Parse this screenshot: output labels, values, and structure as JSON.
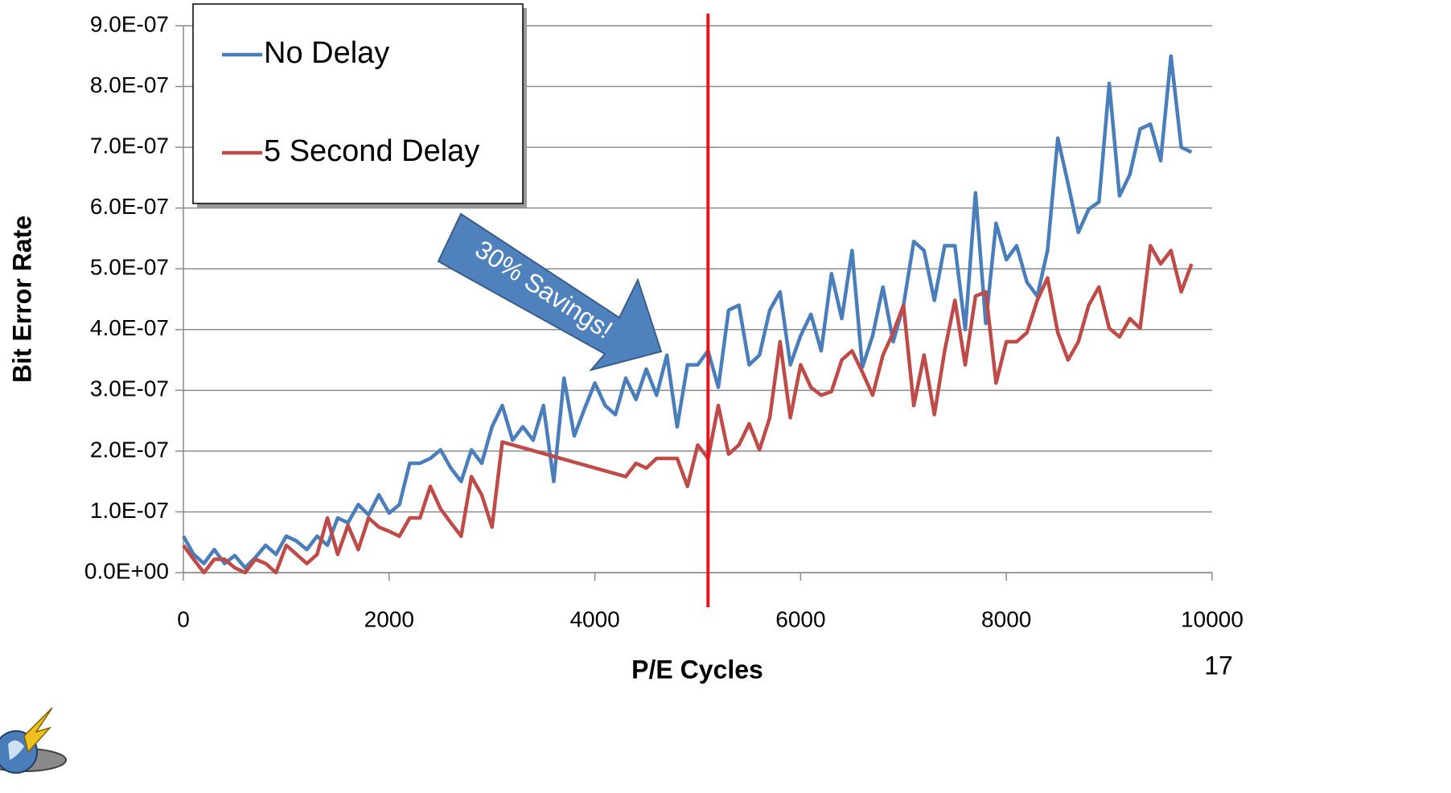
{
  "chart_data": {
    "type": "line",
    "x_label": "P/E Cycles",
    "y_label": "Bit Error Rate",
    "annotation": "30% Savings!",
    "page_number": "17",
    "reference_line": {
      "x": 5100,
      "color": "#e8141c"
    },
    "xlim": [
      0,
      10000
    ],
    "xticks": [
      0,
      2000,
      4000,
      6000,
      8000,
      10000
    ],
    "ylim": [
      0,
      9e-07
    ],
    "yticks": [
      {
        "value": 0,
        "label": "0.0E+00"
      },
      {
        "value": 1e-07,
        "label": "1.0E-07"
      },
      {
        "value": 2e-07,
        "label": "2.0E-07"
      },
      {
        "value": 3e-07,
        "label": "3.0E-07"
      },
      {
        "value": 4e-07,
        "label": "4.0E-07"
      },
      {
        "value": 5e-07,
        "label": "5.0E-07"
      },
      {
        "value": 6e-07,
        "label": "6.0E-07"
      },
      {
        "value": 7e-07,
        "label": "7.0E-07"
      },
      {
        "value": 8e-07,
        "label": "8.0E-07"
      },
      {
        "value": 9e-07,
        "label": "9.0E-07"
      }
    ],
    "grid": true,
    "legend": "top-left",
    "series": [
      {
        "name": "No Delay",
        "color": "#4a7ebb",
        "x": [
          0,
          100,
          200,
          300,
          400,
          500,
          600,
          700,
          800,
          900,
          1000,
          1100,
          1200,
          1300,
          1400,
          1500,
          1600,
          1700,
          1800,
          1900,
          2000,
          2100,
          2200,
          2300,
          2400,
          2500,
          2600,
          2700,
          2800,
          2900,
          3000,
          3100,
          3200,
          3300,
          3400,
          3500,
          3600,
          3700,
          3800,
          3900,
          4000,
          4100,
          4200,
          4300,
          4400,
          4500,
          4600,
          4700,
          4800,
          4900,
          5000,
          5100,
          5200,
          5300,
          5400,
          5500,
          5600,
          5700,
          5800,
          5900,
          6000,
          6100,
          6200,
          6300,
          6400,
          6500,
          6600,
          6700,
          6800,
          6900,
          7000,
          7100,
          7200,
          7300,
          7400,
          7500,
          7600,
          7700,
          7800,
          7900,
          8000,
          8100,
          8200,
          8300,
          8400,
          8500,
          8600,
          8700,
          8800,
          8900,
          9000,
          9100,
          9200,
          9300,
          9400,
          9500,
          9600,
          9700,
          9800
        ],
        "values": [
          6e-08,
          3e-08,
          1.5e-08,
          3.8e-08,
          1.5e-08,
          2.8e-08,
          8e-09,
          2.5e-08,
          4.5e-08,
          3e-08,
          6e-08,
          5.2e-08,
          3.8e-08,
          6e-08,
          4.5e-08,
          9e-08,
          8.2e-08,
          1.12e-07,
          9.5e-08,
          1.28e-07,
          9.8e-08,
          1.12e-07,
          1.8e-07,
          1.8e-07,
          1.88e-07,
          2.02e-07,
          1.72e-07,
          1.5e-07,
          2.02e-07,
          1.8e-07,
          2.4e-07,
          2.75e-07,
          2.18e-07,
          2.4e-07,
          2.18e-07,
          2.75e-07,
          1.5e-07,
          3.2e-07,
          2.25e-07,
          2.7e-07,
          3.12e-07,
          2.75e-07,
          2.6e-07,
          3.2e-07,
          2.85e-07,
          3.35e-07,
          2.92e-07,
          3.58e-07,
          2.4e-07,
          3.42e-07,
          3.42e-07,
          3.65e-07,
          3.05e-07,
          4.32e-07,
          4.4e-07,
          3.42e-07,
          3.58e-07,
          4.32e-07,
          4.62e-07,
          3.42e-07,
          3.9e-07,
          4.25e-07,
          3.65e-07,
          4.92e-07,
          4.18e-07,
          5.3e-07,
          3.38e-07,
          3.9e-07,
          4.7e-07,
          3.8e-07,
          4.4e-07,
          5.45e-07,
          5.3e-07,
          4.48e-07,
          5.38e-07,
          5.38e-07,
          4e-07,
          6.25e-07,
          4.1e-07,
          5.75e-07,
          5.15e-07,
          5.38e-07,
          4.78e-07,
          4.55e-07,
          5.3e-07,
          7.15e-07,
          6.4e-07,
          5.6e-07,
          5.98e-07,
          6.1e-07,
          8.05e-07,
          6.2e-07,
          6.55e-07,
          7.3e-07,
          7.38e-07,
          6.78e-07,
          8.5e-07,
          7e-07,
          6.92e-07
        ]
      },
      {
        "name": "5 Second Delay",
        "color": "#be4b48",
        "x": [
          0,
          100,
          200,
          300,
          400,
          500,
          600,
          700,
          800,
          900,
          1000,
          1100,
          1200,
          1300,
          1400,
          1500,
          1600,
          1700,
          1800,
          1900,
          2000,
          2100,
          2200,
          2300,
          2400,
          2500,
          2600,
          2700,
          2800,
          2900,
          3000,
          3100,
          4300,
          4400,
          4500,
          4600,
          4700,
          4800,
          4900,
          5000,
          5100,
          5200,
          5300,
          5400,
          5500,
          5600,
          5700,
          5800,
          5900,
          6000,
          6100,
          6200,
          6300,
          6400,
          6500,
          6600,
          6700,
          6800,
          6900,
          7000,
          7100,
          7200,
          7300,
          7400,
          7500,
          7600,
          7700,
          7800,
          7900,
          8000,
          8100,
          8200,
          8300,
          8400,
          8500,
          8600,
          8700,
          8800,
          8900,
          9000,
          9100,
          9200,
          9300,
          9400,
          9500,
          9600,
          9700,
          9800
        ],
        "values": [
          4.5e-08,
          2.2e-08,
          0,
          2.2e-08,
          2.2e-08,
          8e-09,
          0,
          2.2e-08,
          1.5e-08,
          0,
          4.5e-08,
          3e-08,
          1.5e-08,
          3e-08,
          9e-08,
          3e-08,
          7.8e-08,
          3.8e-08,
          9e-08,
          7.5e-08,
          6.8e-08,
          6e-08,
          9e-08,
          9e-08,
          1.42e-07,
          1.05e-07,
          8.2e-08,
          6e-08,
          1.58e-07,
          1.28e-07,
          7.5e-08,
          2.15e-07,
          1.58e-07,
          1.8e-07,
          1.72e-07,
          1.88e-07,
          1.88e-07,
          1.88e-07,
          1.42e-07,
          2.1e-07,
          1.88e-07,
          2.75e-07,
          1.95e-07,
          2.1e-07,
          2.45e-07,
          2.02e-07,
          2.55e-07,
          3.8e-07,
          2.55e-07,
          3.42e-07,
          3.05e-07,
          2.92e-07,
          2.98e-07,
          3.5e-07,
          3.65e-07,
          3.3e-07,
          2.92e-07,
          3.58e-07,
          3.95e-07,
          4.4e-07,
          2.75e-07,
          3.58e-07,
          2.6e-07,
          3.65e-07,
          4.48e-07,
          3.42e-07,
          4.55e-07,
          4.62e-07,
          3.12e-07,
          3.8e-07,
          3.8e-07,
          3.95e-07,
          4.48e-07,
          4.85e-07,
          3.95e-07,
          3.5e-07,
          3.8e-07,
          4.4e-07,
          4.7e-07,
          4.02e-07,
          3.88e-07,
          4.18e-07,
          4.02e-07,
          5.38e-07,
          5.08e-07,
          5.3e-07,
          4.62e-07,
          5.08e-07
        ]
      }
    ]
  }
}
